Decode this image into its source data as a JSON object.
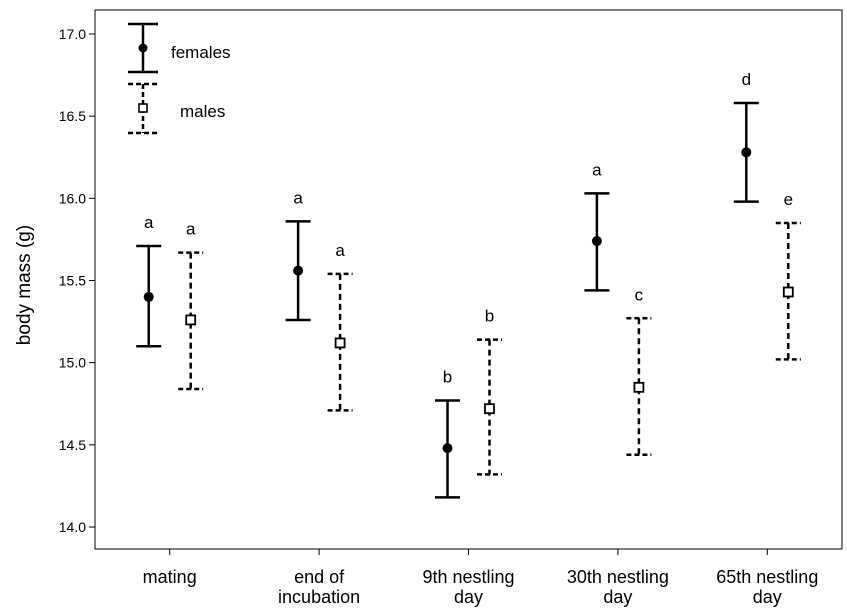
{
  "chart_data": {
    "type": "scatter",
    "subtype": "error-bar",
    "title": "",
    "xlabel": "",
    "ylabel": "body mass (g)",
    "ylim": [
      13.85,
      17.1
    ],
    "yticks": [
      "14.0",
      "14.5",
      "15.0",
      "15.5",
      "16.0",
      "16.5",
      "17.0"
    ],
    "categories": [
      [
        "mating"
      ],
      [
        "end of",
        "incubation"
      ],
      [
        "9th nestling",
        "day"
      ],
      [
        "30th nestling",
        "day"
      ],
      [
        "65th nestling",
        "day"
      ]
    ],
    "series": [
      {
        "name": "females",
        "marker": "filled-circle",
        "line": "solid",
        "color": "#000000",
        "mean": [
          15.4,
          15.56,
          14.48,
          15.74,
          16.28
        ],
        "lower": [
          15.1,
          15.26,
          14.18,
          15.44,
          15.98
        ],
        "upper": [
          15.71,
          15.86,
          14.77,
          16.03,
          16.58
        ],
        "sig_labels": [
          "a",
          "a",
          "b",
          "a",
          "d"
        ]
      },
      {
        "name": "males",
        "marker": "open-square",
        "line": "dashed",
        "color": "#000000",
        "mean": [
          15.26,
          15.12,
          14.72,
          14.85,
          15.43
        ],
        "lower": [
          14.84,
          14.71,
          14.32,
          14.44,
          15.02
        ],
        "upper": [
          15.67,
          15.54,
          15.14,
          15.27,
          15.85
        ],
        "sig_labels": [
          "a",
          "a",
          "b",
          "c",
          "e"
        ]
      }
    ],
    "legend": {
      "position": "top-left",
      "frame": false
    },
    "grid": false
  }
}
